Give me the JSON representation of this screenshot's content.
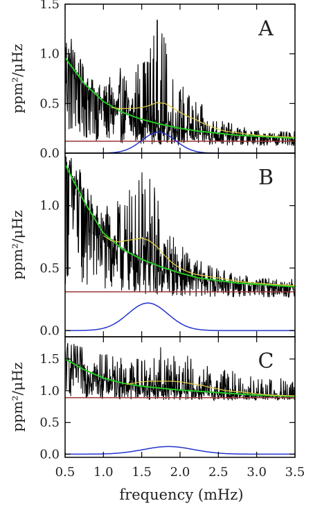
{
  "colors": {
    "spectrum": "#000000",
    "background_fit": "#22cc22",
    "smoothed": "#ddcc44",
    "gaussian": "#2233cc",
    "noise_level": "#993333",
    "axes": "#000000",
    "text": "#222222"
  },
  "figure": {
    "xlabel": "frequency (mHz)",
    "xlim": [
      0.5,
      3.5
    ],
    "xticks": [
      0.5,
      1.0,
      1.5,
      2.0,
      2.5,
      3.0,
      3.5
    ],
    "xtick_labels": [
      "0.5",
      "1.0",
      "1.5",
      "2.0",
      "2.5",
      "3.0",
      "3.5"
    ],
    "ylabel": "ppm²/μHz"
  },
  "chart_data": [
    {
      "type": "line",
      "panel_label": "A",
      "ylim": [
        0,
        1.5
      ],
      "yticks": [
        0.0,
        0.5,
        1.0,
        1.5
      ],
      "ytick_labels": [
        "0.0",
        "0.5",
        "1.0",
        "1.5"
      ],
      "noise_level": 0.12,
      "background": {
        "x": [
          0.5,
          0.75,
          1.0,
          1.25,
          1.5,
          1.75,
          2.0,
          2.25,
          2.5,
          2.75,
          3.0,
          3.25,
          3.5
        ],
        "y": [
          0.96,
          0.7,
          0.52,
          0.41,
          0.34,
          0.29,
          0.25,
          0.22,
          0.2,
          0.18,
          0.17,
          0.16,
          0.15
        ]
      },
      "smoothed": {
        "x": [
          1.1,
          1.2,
          1.3,
          1.4,
          1.5,
          1.6,
          1.7,
          1.8,
          1.9,
          2.0,
          2.1,
          2.2,
          2.3,
          2.4,
          2.5,
          2.6,
          2.8,
          3.0,
          3.2,
          3.5
        ],
        "y": [
          0.46,
          0.45,
          0.45,
          0.45,
          0.46,
          0.48,
          0.51,
          0.5,
          0.46,
          0.41,
          0.37,
          0.34,
          0.3,
          0.27,
          0.24,
          0.22,
          0.2,
          0.18,
          0.17,
          0.16
        ]
      },
      "gaussian": {
        "center": 1.72,
        "sigma": 0.22,
        "amplitude": 0.21,
        "baseline": 0.0
      },
      "spectrum_envelope": {
        "x": [
          0.5,
          0.6,
          0.7,
          0.8,
          0.9,
          1.0,
          1.1,
          1.2,
          1.3,
          1.4,
          1.5,
          1.6,
          1.7,
          1.8,
          1.9,
          2.0,
          2.2,
          2.4,
          2.6,
          2.8,
          3.0,
          3.2,
          3.5
        ],
        "y": [
          1.5,
          1.2,
          0.95,
          0.8,
          0.7,
          0.7,
          0.78,
          0.85,
          0.9,
          0.95,
          1.05,
          1.2,
          1.42,
          1.2,
          0.95,
          0.75,
          0.55,
          0.4,
          0.32,
          0.27,
          0.24,
          0.22,
          0.22
        ]
      }
    },
    {
      "type": "line",
      "panel_label": "B",
      "ylim": [
        -0.05,
        1.42
      ],
      "yticks": [
        0.0,
        0.5,
        1.0
      ],
      "ytick_labels": [
        "0.0",
        "0.5",
        "1.0"
      ],
      "noise_level": 0.31,
      "background": {
        "x": [
          0.5,
          0.75,
          1.0,
          1.25,
          1.5,
          1.75,
          2.0,
          2.25,
          2.5,
          2.75,
          3.0,
          3.25,
          3.5
        ],
        "y": [
          1.33,
          1.03,
          0.78,
          0.65,
          0.57,
          0.51,
          0.46,
          0.42,
          0.4,
          0.38,
          0.37,
          0.36,
          0.35
        ]
      },
      "smoothed": {
        "x": [
          1.0,
          1.1,
          1.2,
          1.3,
          1.4,
          1.5,
          1.6,
          1.7,
          1.8,
          1.9,
          2.0,
          2.1,
          2.2,
          2.3,
          2.4,
          2.6,
          2.8,
          3.0,
          3.2,
          3.5
        ],
        "y": [
          0.76,
          0.72,
          0.71,
          0.72,
          0.73,
          0.74,
          0.72,
          0.67,
          0.6,
          0.54,
          0.5,
          0.47,
          0.45,
          0.44,
          0.43,
          0.41,
          0.39,
          0.38,
          0.37,
          0.36
        ]
      },
      "gaussian": {
        "center": 1.58,
        "sigma": 0.26,
        "amplitude": 0.22,
        "baseline": 0.0
      },
      "spectrum_envelope": {
        "x": [
          0.5,
          0.6,
          0.7,
          0.8,
          0.9,
          1.0,
          1.1,
          1.2,
          1.3,
          1.4,
          1.5,
          1.6,
          1.7,
          1.8,
          1.9,
          2.0,
          2.2,
          2.4,
          2.6,
          2.8,
          3.0,
          3.2,
          3.5
        ],
        "y": [
          1.42,
          1.42,
          1.3,
          1.15,
          1.05,
          1.0,
          1.0,
          1.05,
          1.1,
          1.2,
          1.3,
          1.35,
          1.15,
          0.95,
          0.8,
          0.7,
          0.58,
          0.52,
          0.48,
          0.45,
          0.43,
          0.42,
          0.42
        ]
      }
    },
    {
      "type": "line",
      "panel_label": "C",
      "ylim": [
        -0.05,
        1.85
      ],
      "yticks": [
        0.0,
        0.5,
        1.0,
        1.5
      ],
      "ytick_labels": [
        "0.0",
        "0.5",
        "1.0",
        "1.5"
      ],
      "noise_level": 0.89,
      "background": {
        "x": [
          0.5,
          0.75,
          1.0,
          1.25,
          1.5,
          1.75,
          2.0,
          2.25,
          2.5,
          2.75,
          3.0,
          3.25,
          3.5
        ],
        "y": [
          1.5,
          1.33,
          1.2,
          1.12,
          1.07,
          1.04,
          1.01,
          0.99,
          0.97,
          0.95,
          0.93,
          0.92,
          0.91
        ]
      },
      "smoothed": {
        "x": [
          1.3,
          1.4,
          1.5,
          1.6,
          1.7,
          1.8,
          1.9,
          2.0,
          2.1,
          2.2,
          2.3,
          2.4,
          2.6,
          2.8,
          3.0,
          3.2,
          3.5
        ],
        "y": [
          1.1,
          1.12,
          1.14,
          1.15,
          1.15,
          1.15,
          1.15,
          1.14,
          1.12,
          1.1,
          1.08,
          1.05,
          1.0,
          0.98,
          0.95,
          0.93,
          0.92
        ]
      },
      "gaussian": {
        "center": 1.85,
        "sigma": 0.33,
        "amplitude": 0.12,
        "baseline": 0.0
      },
      "spectrum_envelope": {
        "x": [
          0.5,
          0.6,
          0.7,
          0.8,
          0.9,
          1.0,
          1.2,
          1.4,
          1.6,
          1.8,
          2.0,
          2.2,
          2.4,
          2.6,
          2.8,
          3.0,
          3.2,
          3.5
        ],
        "y": [
          1.85,
          1.75,
          1.7,
          1.7,
          1.65,
          1.6,
          1.55,
          1.6,
          1.65,
          1.7,
          1.6,
          1.5,
          1.4,
          1.35,
          1.3,
          1.25,
          1.2,
          1.2
        ]
      }
    }
  ]
}
